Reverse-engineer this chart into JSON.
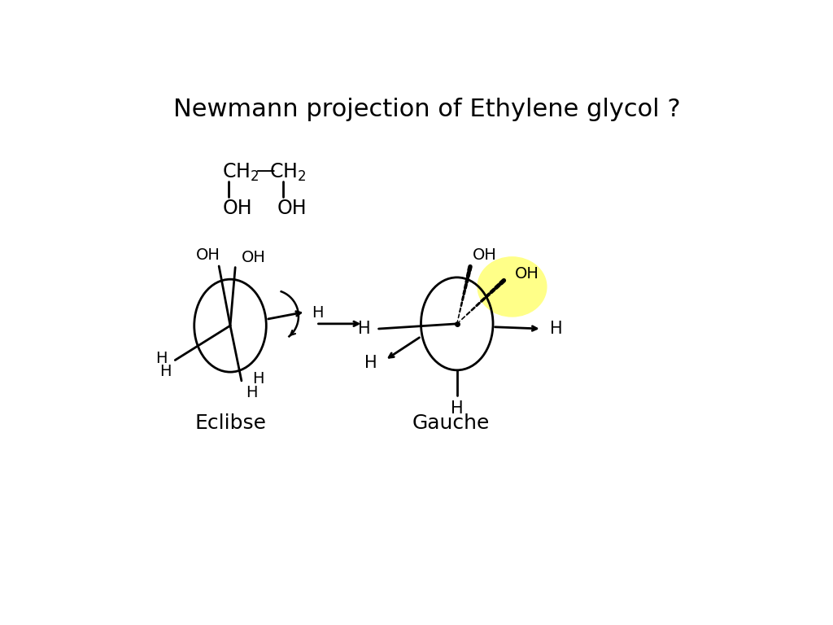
{
  "title": "Newmann projection of Ethylene glycol ?",
  "bg_color": "#FFFFFF",
  "title_fontsize": 22,
  "eclipse_label": "Eclibse",
  "gauche_label": "Gauche",
  "yellow_color": "#FFFF88"
}
